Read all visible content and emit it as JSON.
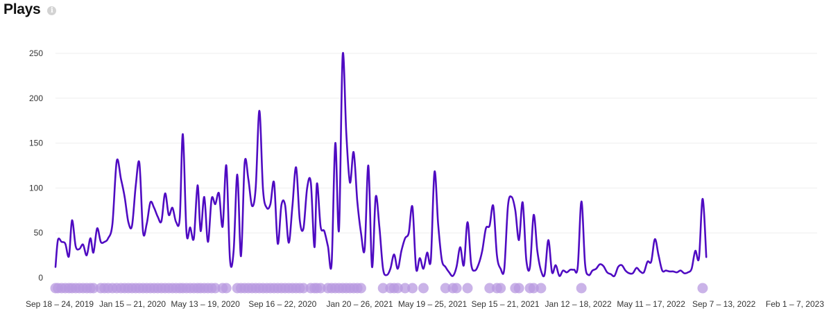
{
  "header": {
    "title": "Plays",
    "info_icon": "i"
  },
  "colors": {
    "line": "#4f0bc2",
    "marker": "#b89ae0",
    "grid": "#eeeeee"
  },
  "chart_data": {
    "type": "line",
    "title": "Plays",
    "ylim": [
      0,
      250
    ],
    "yticks": [
      0,
      50,
      100,
      150,
      200,
      250
    ],
    "grid": true,
    "x_range": [
      "2019-09-18",
      "2023-02-13"
    ],
    "xtick_labels": [
      {
        "date": "2019-09-18",
        "label": "Sep 18 – 24, 2019"
      },
      {
        "date": "2020-01-15",
        "label": "Jan 15 – 21, 2020"
      },
      {
        "date": "2020-05-13",
        "label": "May 13 – 19, 2020"
      },
      {
        "date": "2020-09-16",
        "label": "Sep 16 – 22, 2020"
      },
      {
        "date": "2021-01-20",
        "label": "Jan 20 – 26, 2021"
      },
      {
        "date": "2021-05-19",
        "label": "May 19 – 25, 2021"
      },
      {
        "date": "2021-09-15",
        "label": "Sep 15 – 21, 2021"
      },
      {
        "date": "2022-01-12",
        "label": "Jan 12 – 18, 2022"
      },
      {
        "date": "2022-05-11",
        "label": "May 11 – 17, 2022"
      },
      {
        "date": "2022-09-07",
        "label": "Sep 7 – 13, 2022"
      },
      {
        "date": "2023-02-01",
        "label": "Feb 1 – 7, 2023"
      }
    ],
    "series": [
      {
        "values": [
          [
            "2019-09-18",
            12
          ],
          [
            "2019-09-22",
            42
          ],
          [
            "2019-09-28",
            40
          ],
          [
            "2019-10-04",
            38
          ],
          [
            "2019-10-10",
            24
          ],
          [
            "2019-10-15",
            64
          ],
          [
            "2019-10-21",
            35
          ],
          [
            "2019-10-27",
            32
          ],
          [
            "2019-11-02",
            37
          ],
          [
            "2019-11-08",
            25
          ],
          [
            "2019-11-14",
            44
          ],
          [
            "2019-11-19",
            28
          ],
          [
            "2019-11-25",
            55
          ],
          [
            "2019-12-01",
            40
          ],
          [
            "2019-12-07",
            40
          ],
          [
            "2019-12-13",
            44
          ],
          [
            "2019-12-20",
            60
          ],
          [
            "2019-12-27",
            130
          ],
          [
            "2020-01-03",
            110
          ],
          [
            "2020-01-09",
            90
          ],
          [
            "2020-01-15",
            62
          ],
          [
            "2020-01-21",
            58
          ],
          [
            "2020-01-27",
            102
          ],
          [
            "2020-02-02",
            128
          ],
          [
            "2020-02-08",
            51
          ],
          [
            "2020-02-14",
            60
          ],
          [
            "2020-02-20",
            84
          ],
          [
            "2020-02-26",
            78
          ],
          [
            "2020-03-03",
            68
          ],
          [
            "2020-03-09",
            63
          ],
          [
            "2020-03-15",
            94
          ],
          [
            "2020-03-21",
            70
          ],
          [
            "2020-03-27",
            78
          ],
          [
            "2020-04-02",
            62
          ],
          [
            "2020-04-08",
            67
          ],
          [
            "2020-04-13",
            160
          ],
          [
            "2020-04-19",
            50
          ],
          [
            "2020-04-25",
            56
          ],
          [
            "2020-05-01",
            44
          ],
          [
            "2020-05-07",
            103
          ],
          [
            "2020-05-12",
            52
          ],
          [
            "2020-05-18",
            90
          ],
          [
            "2020-05-24",
            40
          ],
          [
            "2020-05-30",
            88
          ],
          [
            "2020-06-05",
            82
          ],
          [
            "2020-06-11",
            94
          ],
          [
            "2020-06-17",
            57
          ],
          [
            "2020-06-23",
            125
          ],
          [
            "2020-06-29",
            20
          ],
          [
            "2020-07-05",
            30
          ],
          [
            "2020-07-11",
            115
          ],
          [
            "2020-07-17",
            24
          ],
          [
            "2020-07-23",
            128
          ],
          [
            "2020-07-29",
            110
          ],
          [
            "2020-08-04",
            80
          ],
          [
            "2020-08-10",
            100
          ],
          [
            "2020-08-16",
            186
          ],
          [
            "2020-08-22",
            98
          ],
          [
            "2020-08-28",
            78
          ],
          [
            "2020-09-03",
            82
          ],
          [
            "2020-09-09",
            106
          ],
          [
            "2020-09-15",
            38
          ],
          [
            "2020-09-21",
            81
          ],
          [
            "2020-09-27",
            81
          ],
          [
            "2020-10-03",
            39
          ],
          [
            "2020-10-09",
            80
          ],
          [
            "2020-10-15",
            123
          ],
          [
            "2020-10-21",
            64
          ],
          [
            "2020-10-27",
            55
          ],
          [
            "2020-11-02",
            100
          ],
          [
            "2020-11-08",
            106
          ],
          [
            "2020-11-14",
            34
          ],
          [
            "2020-11-18",
            105
          ],
          [
            "2020-11-24",
            57
          ],
          [
            "2020-11-30",
            52
          ],
          [
            "2020-12-06",
            35
          ],
          [
            "2020-12-12",
            16
          ],
          [
            "2020-12-18",
            150
          ],
          [
            "2020-12-24",
            53
          ],
          [
            "2020-12-30",
            248
          ],
          [
            "2021-01-05",
            160
          ],
          [
            "2021-01-11",
            106
          ],
          [
            "2021-01-17",
            140
          ],
          [
            "2021-01-23",
            85
          ],
          [
            "2021-01-29",
            50
          ],
          [
            "2021-02-04",
            32
          ],
          [
            "2021-02-10",
            125
          ],
          [
            "2021-02-16",
            12
          ],
          [
            "2021-02-22",
            90
          ],
          [
            "2021-02-28",
            57
          ],
          [
            "2021-03-06",
            10
          ],
          [
            "2021-03-12",
            3
          ],
          [
            "2021-03-18",
            10
          ],
          [
            "2021-03-24",
            26
          ],
          [
            "2021-03-30",
            10
          ],
          [
            "2021-04-05",
            30
          ],
          [
            "2021-04-11",
            44
          ],
          [
            "2021-04-17",
            50
          ],
          [
            "2021-04-23",
            79
          ],
          [
            "2021-04-29",
            10
          ],
          [
            "2021-05-05",
            22
          ],
          [
            "2021-05-11",
            10
          ],
          [
            "2021-05-17",
            28
          ],
          [
            "2021-05-23",
            20
          ],
          [
            "2021-05-29",
            118
          ],
          [
            "2021-06-04",
            60
          ],
          [
            "2021-06-10",
            20
          ],
          [
            "2021-06-16",
            12
          ],
          [
            "2021-06-22",
            6
          ],
          [
            "2021-06-28",
            2
          ],
          [
            "2021-07-04",
            12
          ],
          [
            "2021-07-10",
            34
          ],
          [
            "2021-07-16",
            14
          ],
          [
            "2021-07-22",
            62
          ],
          [
            "2021-07-28",
            15
          ],
          [
            "2021-08-03",
            8
          ],
          [
            "2021-08-09",
            15
          ],
          [
            "2021-08-15",
            30
          ],
          [
            "2021-08-21",
            55
          ],
          [
            "2021-08-27",
            58
          ],
          [
            "2021-09-02",
            80
          ],
          [
            "2021-09-08",
            25
          ],
          [
            "2021-09-14",
            10
          ],
          [
            "2021-09-20",
            10
          ],
          [
            "2021-09-26",
            80
          ],
          [
            "2021-10-02",
            90
          ],
          [
            "2021-10-08",
            75
          ],
          [
            "2021-10-14",
            42
          ],
          [
            "2021-10-20",
            84
          ],
          [
            "2021-10-26",
            20
          ],
          [
            "2021-11-01",
            12
          ],
          [
            "2021-11-07",
            70
          ],
          [
            "2021-11-13",
            30
          ],
          [
            "2021-11-19",
            8
          ],
          [
            "2021-11-25",
            4
          ],
          [
            "2021-12-01",
            42
          ],
          [
            "2021-12-07",
            6
          ],
          [
            "2021-12-13",
            14
          ],
          [
            "2021-12-19",
            2
          ],
          [
            "2021-12-25",
            8
          ],
          [
            "2021-12-31",
            6
          ],
          [
            "2022-01-06",
            9
          ],
          [
            "2022-01-12",
            9
          ],
          [
            "2022-01-18",
            12
          ],
          [
            "2022-01-24",
            85
          ],
          [
            "2022-01-30",
            15
          ],
          [
            "2022-02-05",
            3
          ],
          [
            "2022-02-11",
            8
          ],
          [
            "2022-02-17",
            10
          ],
          [
            "2022-02-23",
            15
          ],
          [
            "2022-03-01",
            13
          ],
          [
            "2022-03-07",
            6
          ],
          [
            "2022-03-13",
            4
          ],
          [
            "2022-03-19",
            2
          ],
          [
            "2022-03-25",
            12
          ],
          [
            "2022-03-31",
            14
          ],
          [
            "2022-04-06",
            8
          ],
          [
            "2022-04-12",
            5
          ],
          [
            "2022-04-18",
            5
          ],
          [
            "2022-04-24",
            11
          ],
          [
            "2022-04-30",
            7
          ],
          [
            "2022-05-06",
            6
          ],
          [
            "2022-05-12",
            18
          ],
          [
            "2022-05-18",
            18
          ],
          [
            "2022-05-24",
            43
          ],
          [
            "2022-05-30",
            25
          ],
          [
            "2022-06-05",
            8
          ],
          [
            "2022-06-11",
            8
          ],
          [
            "2022-06-17",
            7
          ],
          [
            "2022-06-23",
            7
          ],
          [
            "2022-06-29",
            6
          ],
          [
            "2022-07-05",
            8
          ],
          [
            "2022-07-11",
            5
          ],
          [
            "2022-07-17",
            6
          ],
          [
            "2022-07-23",
            10
          ],
          [
            "2022-07-29",
            30
          ],
          [
            "2022-08-04",
            22
          ],
          [
            "2022-08-10",
            88
          ],
          [
            "2022-08-16",
            23
          ]
        ]
      }
    ],
    "markers": [
      "2019-09-18",
      "2019-09-22",
      "2019-09-28",
      "2019-10-04",
      "2019-10-10",
      "2019-10-15",
      "2019-10-21",
      "2019-10-27",
      "2019-11-02",
      "2019-11-08",
      "2019-11-14",
      "2019-11-19",
      "2019-12-01",
      "2019-12-07",
      "2019-12-13",
      "2019-12-20",
      "2019-12-27",
      "2020-01-03",
      "2020-01-09",
      "2020-01-15",
      "2020-01-21",
      "2020-01-27",
      "2020-02-02",
      "2020-02-08",
      "2020-02-14",
      "2020-02-20",
      "2020-02-26",
      "2020-03-03",
      "2020-03-09",
      "2020-03-15",
      "2020-03-21",
      "2020-03-27",
      "2020-04-02",
      "2020-04-08",
      "2020-04-13",
      "2020-04-19",
      "2020-04-25",
      "2020-05-01",
      "2020-05-07",
      "2020-05-12",
      "2020-05-18",
      "2020-05-24",
      "2020-05-30",
      "2020-06-05",
      "2020-06-17",
      "2020-06-23",
      "2020-07-11",
      "2020-07-17",
      "2020-07-23",
      "2020-07-29",
      "2020-08-04",
      "2020-08-10",
      "2020-08-16",
      "2020-08-22",
      "2020-08-28",
      "2020-09-03",
      "2020-09-09",
      "2020-09-15",
      "2020-09-21",
      "2020-09-27",
      "2020-10-03",
      "2020-10-09",
      "2020-10-15",
      "2020-10-21",
      "2020-10-27",
      "2020-11-08",
      "2020-11-14",
      "2020-11-18",
      "2020-11-24",
      "2020-12-06",
      "2020-12-12",
      "2020-12-18",
      "2020-12-24",
      "2020-12-30",
      "2021-01-05",
      "2021-01-11",
      "2021-01-17",
      "2021-01-23",
      "2021-01-29",
      "2021-03-06",
      "2021-03-18",
      "2021-03-24",
      "2021-03-30",
      "2021-04-11",
      "2021-04-23",
      "2021-05-11",
      "2021-06-16",
      "2021-06-28",
      "2021-07-04",
      "2021-07-22",
      "2021-08-27",
      "2021-09-08",
      "2021-09-14",
      "2021-10-08",
      "2021-10-14",
      "2021-11-01",
      "2021-11-07",
      "2021-11-19",
      "2022-01-24",
      "2022-08-10"
    ]
  }
}
